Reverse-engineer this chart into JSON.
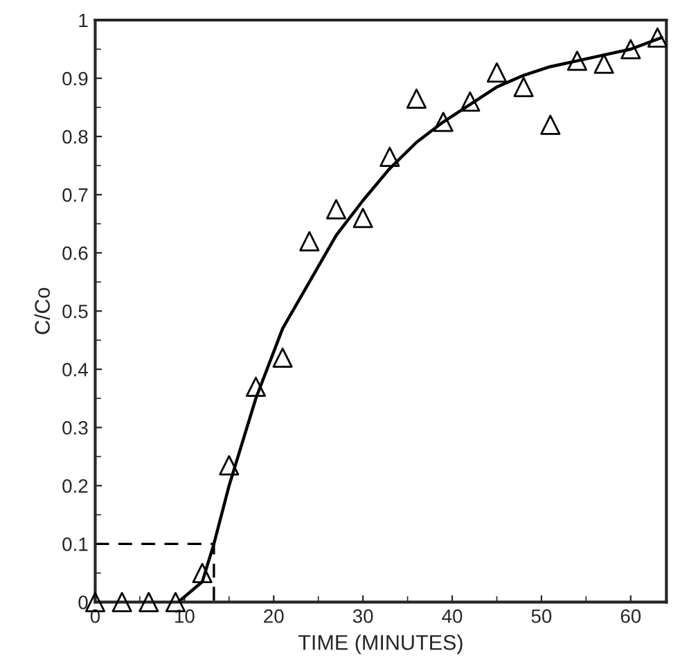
{
  "chart_data": {
    "type": "scatter",
    "xlabel": "TIME (MINUTES)",
    "ylabel": "C/Co",
    "xlim": [
      0,
      64
    ],
    "ylim": [
      0,
      1
    ],
    "xticks": [
      0,
      10,
      20,
      30,
      40,
      50,
      60
    ],
    "yticks": [
      0,
      0.1,
      0.2,
      0.3,
      0.4,
      0.5,
      0.6,
      0.7,
      0.8,
      0.9,
      1
    ],
    "grid": false,
    "legend": false,
    "series": [
      {
        "marker": "triangle",
        "color": "#000000",
        "x": [
          0,
          3,
          6,
          9,
          12,
          15,
          18,
          21,
          24,
          27,
          30,
          33,
          36,
          39,
          42,
          45,
          48,
          51,
          54,
          57,
          60,
          63
        ],
        "values": [
          0,
          0,
          0,
          0,
          0.05,
          0.235,
          0.37,
          0.42,
          0.62,
          0.675,
          0.66,
          0.765,
          0.865,
          0.825,
          0.86,
          0.91,
          0.885,
          0.82,
          0.93,
          0.925,
          0.95,
          0.97
        ]
      },
      {
        "type": "line",
        "line_style": "solid",
        "color": "#000000",
        "x": [
          9.3,
          12,
          13.3,
          15,
          18,
          21,
          24,
          27,
          30,
          33,
          36,
          39,
          42,
          45,
          48,
          51,
          54,
          57,
          60,
          63.5
        ],
        "values": [
          0,
          0.035,
          0.1,
          0.2,
          0.35,
          0.47,
          0.55,
          0.63,
          0.69,
          0.745,
          0.79,
          0.825,
          0.855,
          0.885,
          0.905,
          0.92,
          0.93,
          0.94,
          0.95,
          0.97
        ]
      },
      {
        "type": "line",
        "line_style": "dashed",
        "color": "#000000",
        "x": [
          0,
          13.3,
          13.3
        ],
        "values": [
          0.1,
          0.1,
          0
        ]
      }
    ]
  }
}
